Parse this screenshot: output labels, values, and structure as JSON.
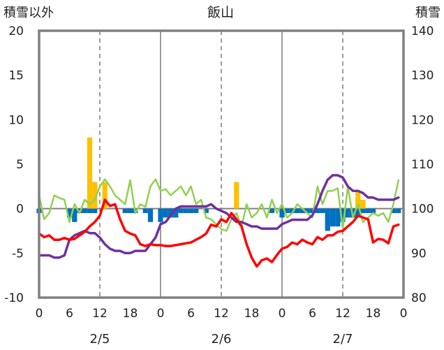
{
  "chart_data": {
    "type": "line",
    "title": "飯山",
    "ylabel_left": "積雪以外",
    "ylabel_right": "積雪",
    "ylim_left": [
      -10,
      20
    ],
    "ylim_right": [
      80,
      140
    ],
    "yticks_left": [
      "20",
      "15",
      "10",
      "5",
      "0",
      "-5",
      "-10"
    ],
    "yticks_right": [
      "140",
      "130",
      "120",
      "110",
      "100",
      "90",
      "80"
    ],
    "xlim": [
      0,
      72
    ],
    "xtick_labels": [
      "0",
      "6",
      "12",
      "18",
      "0",
      "6",
      "12",
      "18",
      "0",
      "6",
      "12",
      "18",
      "0"
    ],
    "dates": [
      {
        "label": "2/5",
        "hour": 12
      },
      {
        "label": "2/6",
        "hour": 36
      },
      {
        "label": "2/7",
        "hour": 60
      }
    ],
    "grid": {
      "vertical_dashed": true,
      "day_boundary_solid": true,
      "zero_line": true
    },
    "colors": {
      "red": "#ff0000",
      "green": "#92d050",
      "purple": "#7030a0",
      "orange": "#ffc000",
      "blue": "#0070c0"
    },
    "series": [
      {
        "axis": "left",
        "style": "line",
        "color": "red",
        "x": [
          0,
          1,
          2,
          3,
          4,
          5,
          6,
          7,
          8,
          9,
          10,
          11,
          12,
          13,
          14,
          15,
          16,
          17,
          18,
          19,
          20,
          21,
          22,
          23,
          24,
          25,
          26,
          27,
          28,
          29,
          30,
          31,
          32,
          33,
          34,
          35,
          36,
          37,
          38,
          39,
          40,
          41,
          42,
          43,
          44,
          45,
          46,
          47,
          48,
          49,
          50,
          51,
          52,
          53,
          54,
          55,
          56,
          57,
          58,
          59,
          60,
          61,
          62,
          63,
          64,
          65,
          66,
          67,
          68,
          69,
          70,
          71
        ],
        "values": [
          -2.8,
          -3.2,
          -3.0,
          -3.5,
          -3.5,
          -3.3,
          -3.5,
          -3.4,
          -3.0,
          -2.6,
          -2.0,
          -1.5,
          -0.8,
          1.0,
          0.3,
          0.5,
          -1.2,
          -2.5,
          -2.8,
          -3.0,
          -4.0,
          -4.2,
          -4.0,
          -4.1,
          -4.1,
          -4.2,
          -4.2,
          -4.1,
          -4.0,
          -3.9,
          -3.8,
          -3.5,
          -3.2,
          -2.8,
          -1.8,
          -2.0,
          -1.2,
          -1.5,
          -0.5,
          -1.2,
          -2.0,
          -4.0,
          -5.5,
          -6.5,
          -5.8,
          -5.6,
          -6.0,
          -5.2,
          -4.5,
          -4.3,
          -3.8,
          -4.0,
          -3.5,
          -3.8,
          -4.0,
          -3.2,
          -3.5,
          -3.0,
          -3.0,
          -2.6,
          -2.5,
          -2.0,
          -1.5,
          -0.8,
          -1.0,
          -1.2,
          -3.8,
          -3.4,
          -3.5,
          -3.9,
          -2.0,
          -1.8
        ]
      },
      {
        "axis": "left",
        "style": "line",
        "color": "green",
        "x": [
          0,
          1,
          2,
          3,
          4,
          5,
          6,
          7,
          8,
          9,
          10,
          11,
          12,
          13,
          14,
          15,
          16,
          17,
          18,
          19,
          20,
          21,
          22,
          23,
          24,
          25,
          26,
          27,
          28,
          29,
          30,
          31,
          32,
          33,
          34,
          35,
          36,
          37,
          38,
          39,
          40,
          41,
          42,
          43,
          44,
          45,
          46,
          47,
          48,
          49,
          50,
          51,
          52,
          53,
          54,
          55,
          56,
          57,
          58,
          59,
          60,
          61,
          62,
          63,
          64,
          65,
          66,
          67,
          68,
          69,
          70,
          71
        ],
        "values": [
          1.5,
          -1.2,
          -0.5,
          1.5,
          1.2,
          1.0,
          -1.5,
          0.5,
          -0.5,
          1.0,
          0.5,
          1.0,
          2.5,
          3.3,
          2.5,
          1.5,
          1.0,
          0.5,
          3.2,
          -0.5,
          0.5,
          0.2,
          2.5,
          3.3,
          2.0,
          2.2,
          1.5,
          2.0,
          2.5,
          1.5,
          2.5,
          0.5,
          1.0,
          -1.0,
          -1.2,
          -1.8,
          -2.3,
          -2.5,
          -1.2,
          -0.5,
          -2.0,
          0.5,
          -1.0,
          -0.5,
          0.5,
          -1.0,
          1.0,
          -0.5,
          0.5,
          -1.0,
          -0.5,
          0.5,
          0.0,
          -0.5,
          -1.0,
          2.5,
          0.5,
          2.0,
          2.0,
          2.3,
          -2.2,
          2.5,
          -1.0,
          0.5,
          -1.5,
          -1.0,
          -0.5,
          -0.8,
          -0.5,
          -1.5,
          0.5,
          3.2
        ]
      },
      {
        "axis": "right",
        "style": "line",
        "color": "purple",
        "x": [
          0,
          1,
          2,
          3,
          4,
          5,
          6,
          7,
          8,
          9,
          10,
          11,
          12,
          13,
          14,
          15,
          16,
          17,
          18,
          19,
          20,
          21,
          22,
          23,
          24,
          25,
          26,
          27,
          28,
          29,
          30,
          31,
          32,
          33,
          34,
          35,
          36,
          37,
          38,
          39,
          40,
          41,
          42,
          43,
          44,
          45,
          46,
          47,
          48,
          49,
          50,
          51,
          52,
          53,
          54,
          55,
          56,
          57,
          58,
          59,
          60,
          61,
          62,
          63,
          64,
          65,
          66,
          67,
          68,
          69,
          70,
          71
        ],
        "values": [
          89.5,
          89.5,
          89.5,
          89.0,
          89.0,
          89.5,
          93.0,
          94.0,
          94.5,
          95.0,
          94.5,
          94.5,
          93.5,
          92.0,
          91.0,
          90.5,
          90.5,
          90.0,
          90.0,
          90.5,
          90.5,
          90.5,
          92.0,
          93.5,
          96.5,
          97.0,
          98.5,
          100.0,
          100.5,
          100.5,
          100.5,
          100.5,
          100.5,
          100.5,
          101.0,
          100.0,
          99.5,
          99.0,
          98.0,
          97.0,
          97.0,
          96.5,
          96.0,
          96.0,
          95.5,
          95.5,
          95.5,
          95.5,
          96.5,
          97.0,
          97.5,
          97.5,
          97.5,
          97.5,
          98.5,
          101.0,
          104.0,
          106.5,
          107.5,
          107.5,
          107.0,
          105.0,
          104.0,
          104.0,
          103.5,
          102.5,
          102.5,
          102.0,
          102.0,
          102.0,
          102.0,
          102.5
        ]
      },
      {
        "axis": "left",
        "style": "bar",
        "color": "orange",
        "x": [
          10,
          11,
          12,
          13,
          39,
          63,
          64
        ],
        "values": [
          8.0,
          3.0,
          0.0,
          3.0,
          3.0,
          2.0,
          1.0
        ]
      },
      {
        "axis": "left",
        "style": "bar",
        "color": "blue",
        "x": [
          0,
          6,
          7,
          8,
          9,
          10,
          11,
          17,
          18,
          19,
          21,
          22,
          24,
          25,
          26,
          27,
          28,
          29,
          30,
          31,
          33,
          46,
          48,
          49,
          50,
          51,
          52,
          53,
          54,
          55,
          56,
          57,
          58,
          59,
          60,
          61,
          62,
          63,
          64,
          65,
          66,
          70,
          71
        ],
        "values": [
          -0.5,
          -1.0,
          -1.5,
          -0.5,
          -0.5,
          -0.5,
          -0.5,
          -0.5,
          -0.5,
          -0.5,
          -0.5,
          -1.5,
          -1.5,
          -1.0,
          -1.0,
          -1.0,
          -0.5,
          -0.5,
          -0.5,
          -0.5,
          -0.5,
          -0.5,
          -1.0,
          -0.5,
          -0.5,
          -0.5,
          -0.5,
          -0.5,
          -0.5,
          -0.5,
          -0.5,
          -2.5,
          -2.0,
          -2.0,
          -1.5,
          -1.0,
          -1.0,
          -1.0,
          -0.5,
          -0.5,
          -0.5,
          -0.5,
          -0.5
        ]
      }
    ]
  }
}
